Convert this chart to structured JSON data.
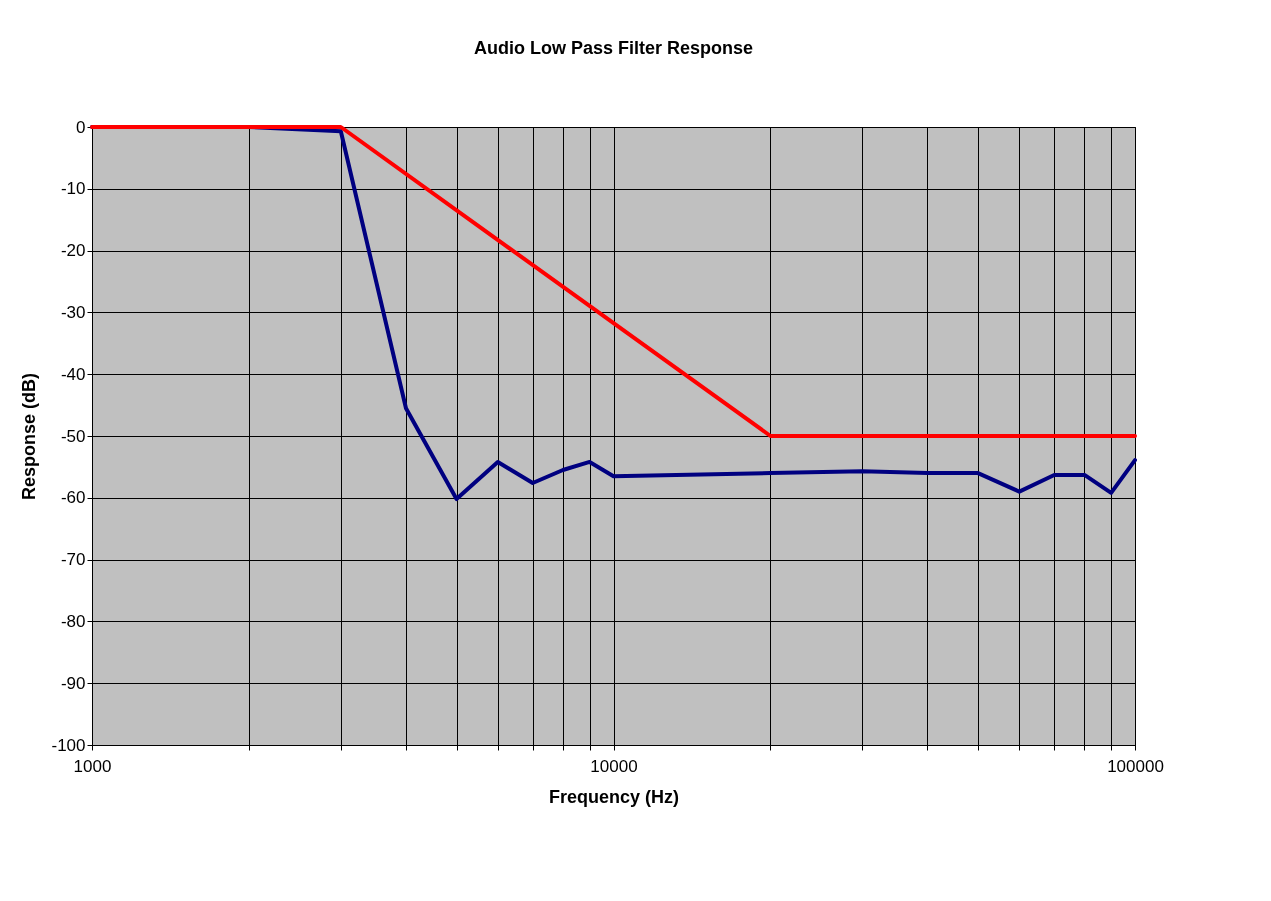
{
  "chart_data": {
    "type": "line",
    "title": "Audio Low Pass Filter Response",
    "xlabel": "Frequency (Hz)",
    "ylabel": "Response (dB)",
    "log": "x",
    "grid": true,
    "legend": false,
    "marker": "none",
    "line_style": "solid",
    "xlim": [
      1000,
      100000
    ],
    "xticks": [
      1000,
      {
        "value": 2000,
        "label": null
      },
      {
        "value": 3000,
        "label": null
      },
      {
        "value": 4000,
        "label": null
      },
      {
        "value": 5000,
        "label": null
      },
      {
        "value": 6000,
        "label": null
      },
      {
        "value": 7000,
        "label": null
      },
      {
        "value": 8000,
        "label": null
      },
      {
        "value": 9000,
        "label": null
      },
      10000,
      {
        "value": 20000,
        "label": null
      },
      {
        "value": 30000,
        "label": null
      },
      {
        "value": 40000,
        "label": null
      },
      {
        "value": 50000,
        "label": null
      },
      {
        "value": 60000,
        "label": null
      },
      {
        "value": 70000,
        "label": null
      },
      {
        "value": 80000,
        "label": null
      },
      {
        "value": 90000,
        "label": null
      },
      100000
    ],
    "ylim": [
      -100,
      0
    ],
    "yticks": [
      -100,
      -90,
      -80,
      -70,
      -60,
      -50,
      -40,
      -30,
      -20,
      -10,
      0
    ],
    "series": [
      {
        "color": "#000080",
        "x": [
          1000,
          2000,
          3000,
          4000,
          5000,
          6000,
          7000,
          8000,
          9000,
          10000,
          20000,
          30000,
          40000,
          50000,
          60000,
          70000,
          80000,
          90000,
          100000
        ],
        "values": [
          0,
          0,
          -0.7,
          -45.5,
          -60.2,
          -54.2,
          -57.6,
          -55.5,
          -54.2,
          -56.5,
          -56,
          -55.7,
          -56,
          -56,
          -59,
          -56.3,
          -56.3,
          -59.2,
          -53.9
        ]
      },
      {
        "color": "#ff0000",
        "x": [
          1000,
          3000,
          20000,
          100000
        ],
        "values": [
          0,
          0,
          -50,
          -50
        ]
      }
    ]
  }
}
